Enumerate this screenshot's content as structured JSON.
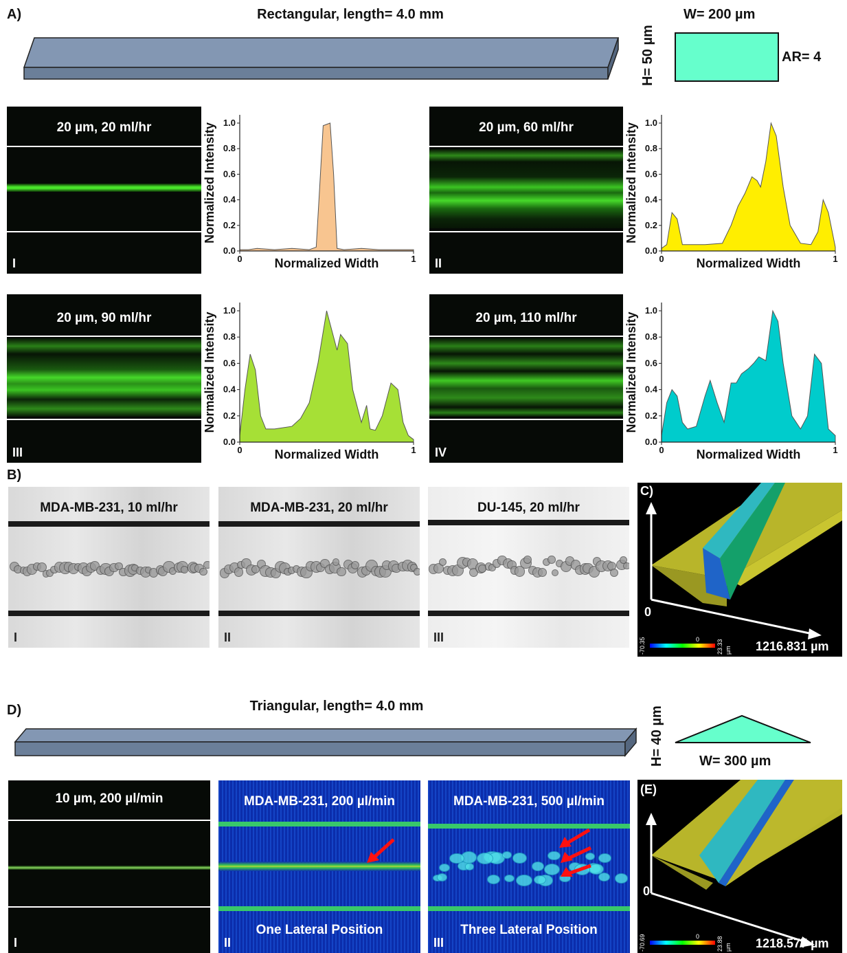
{
  "sectionA": {
    "label": "A)",
    "title": "Rectangular, length= 4.0 mm",
    "cross_section": {
      "width": "W= 200 µm",
      "height": "H= 50 µm",
      "aspect": "AR= 4",
      "color": "#66ffcc"
    },
    "channel_color": "#6b7f99"
  },
  "fluor_panels": [
    {
      "title": "20 µm, 20 ml/hr",
      "roman": "I"
    },
    {
      "title": "20 µm, 60 ml/hr",
      "roman": "II"
    },
    {
      "title": "20 µm, 90 ml/hr",
      "roman": "III"
    },
    {
      "title": "20 µm, 110 ml/hr",
      "roman": "IV"
    }
  ],
  "chart_data": [
    {
      "type": "area",
      "xlabel": "Normalized Width",
      "ylabel": "Normalized Intensity",
      "xlim": [
        0,
        1
      ],
      "ylim": [
        0,
        1
      ],
      "xticks": [
        "0",
        "1"
      ],
      "yticks": [
        "0.0",
        "0.2",
        "0.4",
        "0.6",
        "0.8",
        "1.0"
      ],
      "color": "#f8c590",
      "x": [
        0,
        0.05,
        0.1,
        0.2,
        0.3,
        0.4,
        0.44,
        0.46,
        0.48,
        0.5,
        0.52,
        0.54,
        0.56,
        0.6,
        0.7,
        0.8,
        0.9,
        1.0
      ],
      "y": [
        0.01,
        0.01,
        0.02,
        0.01,
        0.02,
        0.01,
        0.03,
        0.5,
        0.98,
        0.99,
        1.0,
        0.6,
        0.02,
        0.01,
        0.02,
        0.01,
        0.01,
        0.01
      ]
    },
    {
      "type": "area",
      "xlabel": "Normalized Width",
      "ylabel": "Normalized Intensity",
      "xlim": [
        0,
        1
      ],
      "ylim": [
        0,
        1
      ],
      "xticks": [
        "0",
        "1"
      ],
      "yticks": [
        "0.0",
        "0.2",
        "0.4",
        "0.6",
        "0.8",
        "1.0"
      ],
      "color": "#ffee00",
      "x": [
        0,
        0.03,
        0.06,
        0.09,
        0.12,
        0.16,
        0.25,
        0.35,
        0.4,
        0.44,
        0.48,
        0.52,
        0.55,
        0.57,
        0.6,
        0.63,
        0.66,
        0.7,
        0.74,
        0.8,
        0.86,
        0.9,
        0.93,
        0.96,
        1.0
      ],
      "y": [
        0.02,
        0.05,
        0.3,
        0.25,
        0.05,
        0.05,
        0.05,
        0.06,
        0.2,
        0.35,
        0.45,
        0.58,
        0.55,
        0.5,
        0.7,
        1.0,
        0.9,
        0.5,
        0.2,
        0.06,
        0.05,
        0.15,
        0.4,
        0.3,
        0.03
      ]
    },
    {
      "type": "area",
      "xlabel": "Normalized Width",
      "ylabel": "Normalized Intensity",
      "xlim": [
        0,
        1
      ],
      "ylim": [
        0,
        1
      ],
      "xticks": [
        "0",
        "1"
      ],
      "yticks": [
        "0.0",
        "0.2",
        "0.4",
        "0.6",
        "0.8",
        "1.0"
      ],
      "color": "#a6e036",
      "x": [
        0,
        0.03,
        0.06,
        0.09,
        0.12,
        0.15,
        0.2,
        0.3,
        0.35,
        0.4,
        0.45,
        0.5,
        0.53,
        0.56,
        0.58,
        0.62,
        0.65,
        0.7,
        0.73,
        0.75,
        0.78,
        0.82,
        0.87,
        0.91,
        0.94,
        0.97,
        1.0
      ],
      "y": [
        0.05,
        0.4,
        0.67,
        0.55,
        0.2,
        0.1,
        0.1,
        0.12,
        0.18,
        0.3,
        0.6,
        1.0,
        0.85,
        0.7,
        0.82,
        0.75,
        0.4,
        0.15,
        0.28,
        0.1,
        0.09,
        0.2,
        0.45,
        0.4,
        0.15,
        0.05,
        0.02
      ]
    },
    {
      "type": "area",
      "xlabel": "Normalized Width",
      "ylabel": "Normalized Intensity",
      "xlim": [
        0,
        1
      ],
      "ylim": [
        0,
        1
      ],
      "xticks": [
        "0",
        "1"
      ],
      "yticks": [
        "0.0",
        "0.2",
        "0.4",
        "0.6",
        "0.8",
        "1.0"
      ],
      "color": "#00cccc",
      "x": [
        0,
        0.03,
        0.06,
        0.09,
        0.12,
        0.15,
        0.2,
        0.25,
        0.28,
        0.32,
        0.36,
        0.4,
        0.43,
        0.46,
        0.5,
        0.53,
        0.56,
        0.6,
        0.64,
        0.67,
        0.7,
        0.75,
        0.8,
        0.84,
        0.88,
        0.92,
        0.96,
        1.0
      ],
      "y": [
        0.05,
        0.3,
        0.4,
        0.35,
        0.15,
        0.1,
        0.12,
        0.35,
        0.47,
        0.3,
        0.15,
        0.45,
        0.45,
        0.52,
        0.56,
        0.6,
        0.65,
        0.62,
        1.0,
        0.92,
        0.6,
        0.2,
        0.1,
        0.2,
        0.67,
        0.6,
        0.1,
        0.05
      ]
    }
  ],
  "sectionB": {
    "label": "B)",
    "panels": [
      {
        "title": "MDA-MB-231, 10 ml/hr",
        "roman": "I"
      },
      {
        "title": "MDA-MB-231, 20 ml/hr",
        "roman": "II"
      },
      {
        "title": "DU-145, 20 ml/hr",
        "roman": "III"
      }
    ]
  },
  "sectionC": {
    "label": "C)",
    "origin": "0",
    "length": "1216.831 µm",
    "scale_min": "-70.35",
    "scale_mid": "0",
    "scale_max": "23.33",
    "scale_unit": "µm"
  },
  "sectionD": {
    "label": "D)",
    "title": "Triangular, length= 4.0 mm",
    "cross_section": {
      "width": "W= 300 µm",
      "height": "H= 40 µm",
      "color": "#66ffcc"
    },
    "panels": [
      {
        "title": "10 µm, 200 µl/min",
        "roman": "I",
        "caption": ""
      },
      {
        "title": "MDA-MB-231, 200 µl/min",
        "roman": "II",
        "caption": "One Lateral Position"
      },
      {
        "title": "MDA-MB-231, 500 µl/min",
        "roman": "III",
        "caption": "Three Lateral Position"
      }
    ]
  },
  "sectionE": {
    "label": "(E)",
    "origin": "0",
    "length": "1218.577 µm",
    "scale_min": "-70.69",
    "scale_mid": "0",
    "scale_max": "23.88",
    "scale_unit": "µm"
  }
}
